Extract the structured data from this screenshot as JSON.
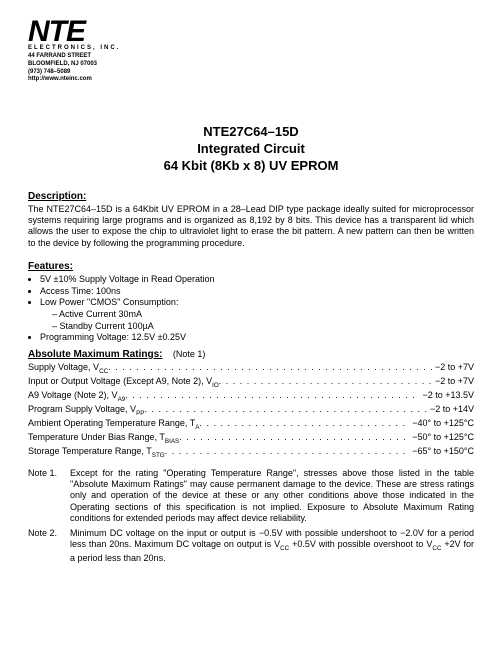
{
  "company": {
    "logo_main": "NTE",
    "logo_sub": "ELECTRONICS, INC.",
    "address_line1": "44 FARRAND STREET",
    "address_line2": "BLOOMFIELD, NJ 07003",
    "phone": "(973) 748–5089",
    "url": "http://www.nteinc.com"
  },
  "title": {
    "line1": "NTE27C64–15D",
    "line2": "Integrated Circuit",
    "line3": "64 Kbit (8Kb x 8) UV EPROM"
  },
  "description": {
    "heading": "Description:",
    "text": "The NTE27C64–15D is a 64Kbit UV EPROM in a 28–Lead DIP type package ideally suited for microprocessor systems requiring large programs and is organized as 8,192 by 8 bits. This device has a transparent lid which allows the user to expose the chip to ultraviolet light to erase the bit pattern. A new pattern can then be written to the device by following the programming procedure."
  },
  "features": {
    "heading": "Features:",
    "items": [
      "5V ±10% Supply Voltage in Read Operation",
      "Access Time: 100ns",
      "Low Power \"CMOS\" Consumption:",
      "Programming Voltage: 12.5V ±0.25V"
    ],
    "sub_items": [
      "Active Current 30mA",
      "Standby Current 100µA"
    ]
  },
  "ratings": {
    "heading": "Absolute Maximum Ratings:",
    "heading_note": "(Note 1)",
    "rows": [
      {
        "label": "Supply Voltage, V",
        "sub": "CC",
        "value": "−2 to +7V"
      },
      {
        "label": "Input or Output Voltage (Except A9, Note 2), V",
        "sub": "IO",
        "value": "−2 to +7V"
      },
      {
        "label": "A9 Voltage (Note 2), V",
        "sub": "A9",
        "value": "−2 to +13.5V"
      },
      {
        "label": "Program Supply Voltage, V",
        "sub": "PP",
        "value": "−2 to +14V"
      },
      {
        "label": "Ambient Operating Temperature Range, T",
        "sub": "A",
        "value": "−40° to +125°C"
      },
      {
        "label": "Temperature Under Bias Range, T",
        "sub": "BIAS",
        "value": "−50° to +125°C"
      },
      {
        "label": "Storage Temperature Range, T",
        "sub": "STG",
        "value": "−65° to +150°C"
      }
    ]
  },
  "notes": {
    "n1_label": "Note 1.",
    "n1_text": "Except for the rating \"Operating Temperature Range\", stresses above those listed in the table \"Absolute Maximum Ratings\" may cause permanent damage to the device. These are stress ratings only and operation of the device at these or any other conditions above those indicated in the Operating sections of this specification is not implied. Exposure to Absolute Maximum Rating conditions for extended periods may affect device reliability.",
    "n2_label": "Note 2.",
    "n2_text_a": "Minimum DC voltage on the input or output is −0.5V with possible undershoot to −2.0V for a period less than 20ns. Maximum DC voltage on output is V",
    "n2_sub": "CC",
    "n2_text_b": " +0.5V with possible overshoot to V",
    "n2_sub2": "CC",
    "n2_text_c": " +2V for a period less than 20ns."
  }
}
